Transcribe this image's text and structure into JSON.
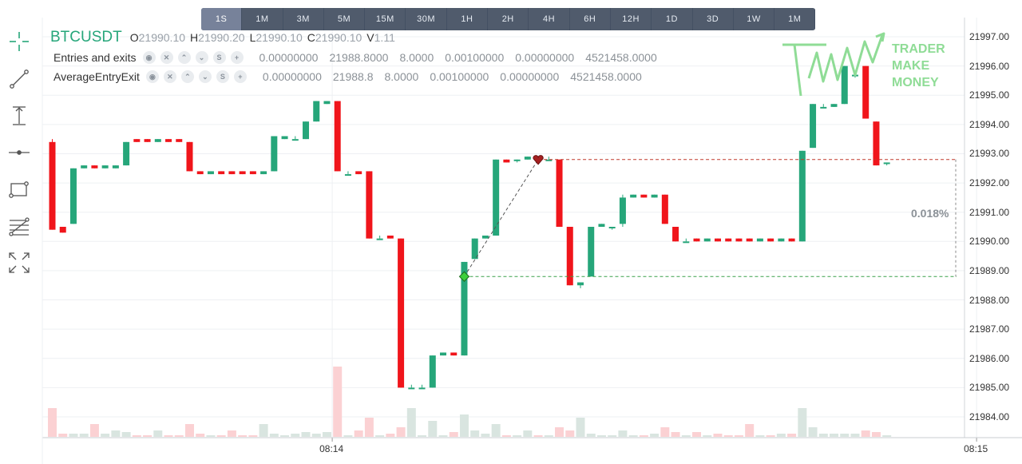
{
  "timeframes": [
    "1S",
    "1M",
    "3M",
    "5M",
    "15M",
    "30M",
    "1H",
    "2H",
    "4H",
    "6H",
    "12H",
    "1D",
    "3D",
    "1W",
    "1M"
  ],
  "active_timeframe_index": 0,
  "legend": {
    "symbol": "BTCUSDT",
    "o_label": "O",
    "o_value": "21990.10",
    "h_label": "H",
    "h_value": "21990.20",
    "l_label": "L",
    "l_value": "21990.10",
    "c_label": "C",
    "c_value": "21990.10",
    "v_label": "V",
    "v_value": "1.11",
    "indicators": [
      {
        "name": "Entries and exits",
        "values": [
          "0.00000000",
          "21988.8000",
          "8.0000",
          "0.00100000",
          "0.00000000",
          "4521458.0000"
        ]
      },
      {
        "name": "AverageEntryExit",
        "values": [
          "0.00000000",
          "21988.8",
          "8.0000",
          "0.00100000",
          "0.00000000",
          "4521458.0000"
        ]
      }
    ],
    "control_glyphs": [
      "◉",
      "✕",
      "⌃",
      "⌄",
      "S",
      "+"
    ]
  },
  "watermark_text": [
    "TRADER",
    "MAKE",
    "MONEY"
  ],
  "range_percent": "0.018%",
  "colors": {
    "up": "#26a67a",
    "down": "#f0151b",
    "up_volume": "#d9e5e0",
    "down_volume": "#fbd1d3",
    "grid": "#eef0f3",
    "accent": "#26a67a"
  },
  "tools": [
    "crosshair-icon",
    "trend-line-icon",
    "vertical-measure-icon",
    "horizontal-line-icon",
    "rectangle-icon",
    "fib-levels-icon",
    "fullscreen-icon"
  ],
  "chart_data": {
    "type": "candlestick",
    "symbol": "BTCUSDT",
    "interval": "1S",
    "y_ticks": [
      "21997.00",
      "21996.00",
      "21995.00",
      "21994.00",
      "21993.00",
      "21992.00",
      "21991.00",
      "21990.00",
      "21989.00",
      "21988.00",
      "21987.00",
      "21986.00",
      "21985.00",
      "21984.00"
    ],
    "x_ticks": [
      {
        "label": "08:14",
        "index": 26.5
      },
      {
        "label": "08:15",
        "index": 87.5
      }
    ],
    "candles": [
      {
        "o": 21993.4,
        "h": 21993.5,
        "l": 21990.4,
        "c": 21990.4,
        "v": 0.9
      },
      {
        "o": 21990.5,
        "h": 21990.5,
        "l": 21990.3,
        "c": 21990.3,
        "v": 0.1
      },
      {
        "o": 21990.6,
        "h": 21992.5,
        "l": 21990.6,
        "c": 21992.5,
        "v": 0.1
      },
      {
        "o": 21992.5,
        "h": 21992.6,
        "l": 21992.5,
        "c": 21992.6,
        "v": 0.1
      },
      {
        "o": 21992.6,
        "h": 21992.6,
        "l": 21992.5,
        "c": 21992.5,
        "v": 0.4
      },
      {
        "o": 21992.5,
        "h": 21992.6,
        "l": 21992.5,
        "c": 21992.6,
        "v": 0.1
      },
      {
        "o": 21992.5,
        "h": 21992.6,
        "l": 21992.5,
        "c": 21992.6,
        "v": 0.2
      },
      {
        "o": 21992.6,
        "h": 21993.4,
        "l": 21992.6,
        "c": 21993.4,
        "v": 0.15
      },
      {
        "o": 21993.5,
        "h": 21993.5,
        "l": 21993.4,
        "c": 21993.4,
        "v": 0.05
      },
      {
        "o": 21993.5,
        "h": 21993.5,
        "l": 21993.4,
        "c": 21993.4,
        "v": 0.05
      },
      {
        "o": 21993.4,
        "h": 21993.5,
        "l": 21993.4,
        "c": 21993.5,
        "v": 0.2
      },
      {
        "o": 21993.5,
        "h": 21993.5,
        "l": 21993.4,
        "c": 21993.4,
        "v": 0.05
      },
      {
        "o": 21993.5,
        "h": 21993.5,
        "l": 21993.4,
        "c": 21993.4,
        "v": 0.05
      },
      {
        "o": 21993.4,
        "h": 21993.4,
        "l": 21992.4,
        "c": 21992.4,
        "v": 0.4
      },
      {
        "o": 21992.4,
        "h": 21992.4,
        "l": 21992.3,
        "c": 21992.3,
        "v": 0.1
      },
      {
        "o": 21992.3,
        "h": 21992.4,
        "l": 21992.3,
        "c": 21992.4,
        "v": 0.05
      },
      {
        "o": 21992.4,
        "h": 21992.4,
        "l": 21992.3,
        "c": 21992.3,
        "v": 0.05
      },
      {
        "o": 21992.4,
        "h": 21992.4,
        "l": 21992.3,
        "c": 21992.3,
        "v": 0.2
      },
      {
        "o": 21992.4,
        "h": 21992.4,
        "l": 21992.3,
        "c": 21992.3,
        "v": 0.05
      },
      {
        "o": 21992.4,
        "h": 21992.4,
        "l": 21992.3,
        "c": 21992.3,
        "v": 0.05
      },
      {
        "o": 21992.3,
        "h": 21992.4,
        "l": 21992.3,
        "c": 21992.4,
        "v": 0.4
      },
      {
        "o": 21992.4,
        "h": 21993.6,
        "l": 21992.4,
        "c": 21993.6,
        "v": 0.1
      },
      {
        "o": 21993.5,
        "h": 21993.6,
        "l": 21993.5,
        "c": 21993.6,
        "v": 0.05
      },
      {
        "o": 21993.5,
        "h": 21993.6,
        "l": 21993.5,
        "c": 21993.5,
        "v": 0.1
      },
      {
        "o": 21993.5,
        "h": 21994.1,
        "l": 21993.5,
        "c": 21994.1,
        "v": 0.15
      },
      {
        "o": 21994.1,
        "h": 21994.8,
        "l": 21994.1,
        "c": 21994.8,
        "v": 0.1
      },
      {
        "o": 21994.7,
        "h": 21994.8,
        "l": 21994.7,
        "c": 21994.8,
        "v": 0.15
      },
      {
        "o": 21994.8,
        "h": 21994.8,
        "l": 21992.4,
        "c": 21992.4,
        "v": 2.2
      },
      {
        "o": 21992.3,
        "h": 21992.4,
        "l": 21992.3,
        "c": 21992.3,
        "v": 0.05
      },
      {
        "o": 21992.4,
        "h": 21992.4,
        "l": 21992.3,
        "c": 21992.3,
        "v": 0.2
      },
      {
        "o": 21992.4,
        "h": 21992.4,
        "l": 21990.1,
        "c": 21990.1,
        "v": 0.6
      },
      {
        "o": 21990.1,
        "h": 21990.2,
        "l": 21990.1,
        "c": 21990.1,
        "v": 0.05
      },
      {
        "o": 21990.2,
        "h": 21990.2,
        "l": 21990.1,
        "c": 21990.1,
        "v": 0.1
      },
      {
        "o": 21990.1,
        "h": 21990.1,
        "l": 21985.0,
        "c": 21985.0,
        "v": 0.3
      },
      {
        "o": 21985.0,
        "h": 21985.1,
        "l": 21985.0,
        "c": 21985.0,
        "v": 0.9
      },
      {
        "o": 21985.0,
        "h": 21985.1,
        "l": 21985.0,
        "c": 21985.0,
        "v": 0.05
      },
      {
        "o": 21985.0,
        "h": 21986.1,
        "l": 21985.0,
        "c": 21986.1,
        "v": 0.5
      },
      {
        "o": 21986.1,
        "h": 21986.2,
        "l": 21986.1,
        "c": 21986.2,
        "v": 0.05
      },
      {
        "o": 21986.2,
        "h": 21986.2,
        "l": 21986.1,
        "c": 21986.1,
        "v": 0.15
      },
      {
        "o": 21986.1,
        "h": 21989.3,
        "l": 21986.1,
        "c": 21989.3,
        "v": 0.7
      },
      {
        "o": 21989.4,
        "h": 21990.1,
        "l": 21989.4,
        "c": 21990.1,
        "v": 0.2
      },
      {
        "o": 21990.1,
        "h": 21990.2,
        "l": 21990.1,
        "c": 21990.2,
        "v": 0.1
      },
      {
        "o": 21990.2,
        "h": 21992.8,
        "l": 21990.2,
        "c": 21992.8,
        "v": 0.4
      },
      {
        "o": 21992.8,
        "h": 21992.8,
        "l": 21992.7,
        "c": 21992.7,
        "v": 0.05
      },
      {
        "o": 21992.8,
        "h": 21992.8,
        "l": 21992.7,
        "c": 21992.8,
        "v": 0.05
      },
      {
        "o": 21992.8,
        "h": 21992.9,
        "l": 21992.8,
        "c": 21992.9,
        "v": 0.2
      },
      {
        "o": 21992.9,
        "h": 21992.9,
        "l": 21992.8,
        "c": 21992.8,
        "v": 0.05
      },
      {
        "o": 21992.8,
        "h": 21992.9,
        "l": 21992.8,
        "c": 21992.8,
        "v": 0.05
      },
      {
        "o": 21992.8,
        "h": 21992.8,
        "l": 21990.5,
        "c": 21990.5,
        "v": 0.3
      },
      {
        "o": 21990.5,
        "h": 21990.5,
        "l": 21988.5,
        "c": 21988.5,
        "v": 0.2
      },
      {
        "o": 21988.5,
        "h": 21988.6,
        "l": 21988.4,
        "c": 21988.6,
        "v": 0.6
      },
      {
        "o": 21988.8,
        "h": 21990.5,
        "l": 21988.8,
        "c": 21990.5,
        "v": 0.1
      },
      {
        "o": 21990.5,
        "h": 21990.6,
        "l": 21990.5,
        "c": 21990.6,
        "v": 0.05
      },
      {
        "o": 21990.5,
        "h": 21990.5,
        "l": 21990.4,
        "c": 21990.5,
        "v": 0.05
      },
      {
        "o": 21990.6,
        "h": 21991.6,
        "l": 21990.5,
        "c": 21991.5,
        "v": 0.2
      },
      {
        "o": 21991.5,
        "h": 21991.6,
        "l": 21991.5,
        "c": 21991.6,
        "v": 0.05
      },
      {
        "o": 21991.6,
        "h": 21991.6,
        "l": 21991.5,
        "c": 21991.5,
        "v": 0.05
      },
      {
        "o": 21991.5,
        "h": 21991.6,
        "l": 21991.5,
        "c": 21991.6,
        "v": 0.1
      },
      {
        "o": 21991.6,
        "h": 21991.6,
        "l": 21990.6,
        "c": 21990.6,
        "v": 0.3
      },
      {
        "o": 21990.5,
        "h": 21990.5,
        "l": 21990.0,
        "c": 21990.0,
        "v": 0.15
      },
      {
        "o": 21990.0,
        "h": 21990.1,
        "l": 21990.0,
        "c": 21990.0,
        "v": 0.05
      },
      {
        "o": 21990.1,
        "h": 21990.1,
        "l": 21990.0,
        "c": 21990.0,
        "v": 0.15
      },
      {
        "o": 21990.0,
        "h": 21990.1,
        "l": 21990.0,
        "c": 21990.1,
        "v": 0.05
      },
      {
        "o": 21990.1,
        "h": 21990.1,
        "l": 21990.0,
        "c": 21990.0,
        "v": 0.1
      },
      {
        "o": 21990.1,
        "h": 21990.1,
        "l": 21990.0,
        "c": 21990.0,
        "v": 0.05
      },
      {
        "o": 21990.1,
        "h": 21990.1,
        "l": 21990.0,
        "c": 21990.0,
        "v": 0.05
      },
      {
        "o": 21990.1,
        "h": 21990.1,
        "l": 21990.0,
        "c": 21990.0,
        "v": 0.4
      },
      {
        "o": 21990.0,
        "h": 21990.1,
        "l": 21990.0,
        "c": 21990.1,
        "v": 0.05
      },
      {
        "o": 21990.1,
        "h": 21990.1,
        "l": 21990.0,
        "c": 21990.0,
        "v": 0.05
      },
      {
        "o": 21990.0,
        "h": 21990.1,
        "l": 21990.0,
        "c": 21990.1,
        "v": 0.1
      },
      {
        "o": 21990.1,
        "h": 21990.1,
        "l": 21990.0,
        "c": 21990.0,
        "v": 0.1
      },
      {
        "o": 21990.0,
        "h": 21993.1,
        "l": 21990.0,
        "c": 21993.1,
        "v": 0.9
      },
      {
        "o": 21993.2,
        "h": 21994.7,
        "l": 21993.2,
        "c": 21994.7,
        "v": 0.3
      },
      {
        "o": 21994.6,
        "h": 21994.7,
        "l": 21994.6,
        "c": 21994.6,
        "v": 0.1
      },
      {
        "o": 21994.6,
        "h": 21994.7,
        "l": 21994.6,
        "c": 21994.7,
        "v": 0.1
      },
      {
        "o": 21994.7,
        "h": 21996.0,
        "l": 21994.7,
        "c": 21996.0,
        "v": 0.1
      },
      {
        "o": 21995.7,
        "h": 21995.7,
        "l": 21995.6,
        "c": 21995.7,
        "v": 0.1
      },
      {
        "o": 21996.0,
        "h": 21996.0,
        "l": 21994.2,
        "c": 21994.2,
        "v": 0.2
      },
      {
        "o": 21994.1,
        "h": 21994.1,
        "l": 21992.6,
        "c": 21992.6,
        "v": 0.15
      },
      {
        "o": 21992.7,
        "h": 21992.7,
        "l": 21992.6,
        "c": 21992.7,
        "v": 0.05
      }
    ],
    "trade_entry": {
      "price": 21988.8,
      "index": 39
    },
    "trade_exit": {
      "price": 21992.8,
      "index": 46
    }
  }
}
